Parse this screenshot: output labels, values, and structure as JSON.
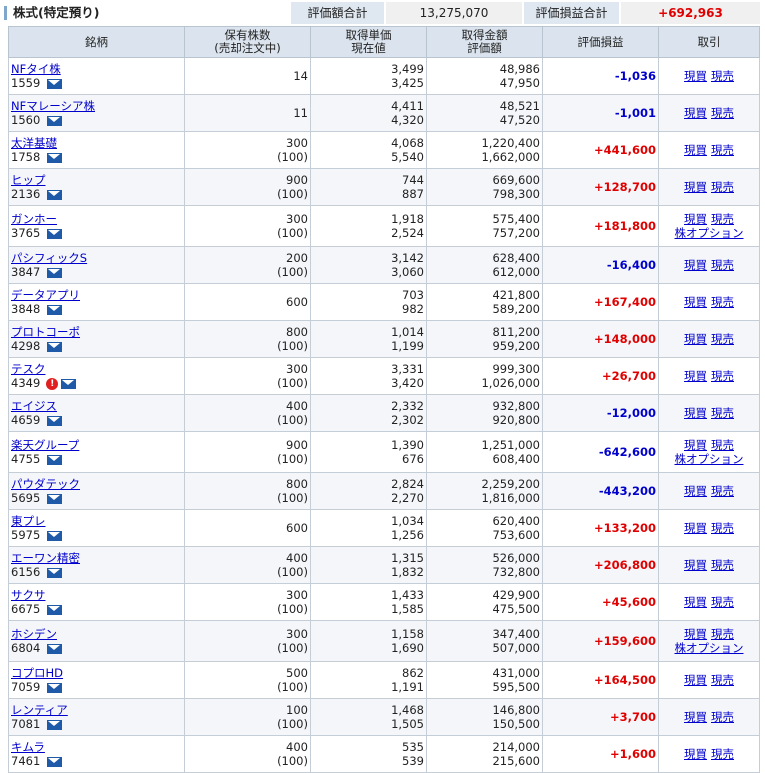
{
  "section_title": "株式(特定預り)",
  "summary": {
    "eval_total_label": "評価額合計",
    "eval_total_value": "13,275,070",
    "pl_total_label": "評価損益合計",
    "pl_total_value": "+692,963"
  },
  "headers": {
    "name": "銘柄",
    "qty_line1": "保有株数",
    "qty_line2": "(売却注文中)",
    "price_line1": "取得単価",
    "price_line2": "現在値",
    "amount_line1": "取得金額",
    "amount_line2": "評価額",
    "pl": "評価損益",
    "trade": "取引"
  },
  "trade_labels": {
    "buy": "現買",
    "sell": "現売",
    "option": "株オプション"
  },
  "colors": {
    "positive": "#e00000",
    "negative": "#0000cc",
    "header_bg": "#dbe4ee",
    "mail_icon": "#1e5aa8"
  },
  "rows": [
    {
      "name": "NFタイ株",
      "code": "1559",
      "qty": "14",
      "qty_sell": "",
      "cost_price": "3,499",
      "cur_price": "3,425",
      "cost_amount": "48,986",
      "eval_amount": "47,950",
      "pl": "-1,036",
      "warn": false,
      "option": false
    },
    {
      "name": "NFマレーシア株",
      "code": "1560",
      "qty": "11",
      "qty_sell": "",
      "cost_price": "4,411",
      "cur_price": "4,320",
      "cost_amount": "48,521",
      "eval_amount": "47,520",
      "pl": "-1,001",
      "warn": false,
      "option": false
    },
    {
      "name": "太洋基礎",
      "code": "1758",
      "qty": "300",
      "qty_sell": "(100)",
      "cost_price": "4,068",
      "cur_price": "5,540",
      "cost_amount": "1,220,400",
      "eval_amount": "1,662,000",
      "pl": "+441,600",
      "warn": false,
      "option": false
    },
    {
      "name": "ヒップ",
      "code": "2136",
      "qty": "900",
      "qty_sell": "(100)",
      "cost_price": "744",
      "cur_price": "887",
      "cost_amount": "669,600",
      "eval_amount": "798,300",
      "pl": "+128,700",
      "warn": false,
      "option": false
    },
    {
      "name": "ガンホー",
      "code": "3765",
      "qty": "300",
      "qty_sell": "(100)",
      "cost_price": "1,918",
      "cur_price": "2,524",
      "cost_amount": "575,400",
      "eval_amount": "757,200",
      "pl": "+181,800",
      "warn": false,
      "option": true
    },
    {
      "name": "パシフィックS",
      "code": "3847",
      "qty": "200",
      "qty_sell": "(100)",
      "cost_price": "3,142",
      "cur_price": "3,060",
      "cost_amount": "628,400",
      "eval_amount": "612,000",
      "pl": "-16,400",
      "warn": false,
      "option": false
    },
    {
      "name": "データアプリ",
      "code": "3848",
      "qty": "600",
      "qty_sell": "",
      "cost_price": "703",
      "cur_price": "982",
      "cost_amount": "421,800",
      "eval_amount": "589,200",
      "pl": "+167,400",
      "warn": false,
      "option": false
    },
    {
      "name": "プロトコーポ",
      "code": "4298",
      "qty": "800",
      "qty_sell": "(100)",
      "cost_price": "1,014",
      "cur_price": "1,199",
      "cost_amount": "811,200",
      "eval_amount": "959,200",
      "pl": "+148,000",
      "warn": false,
      "option": false
    },
    {
      "name": "テスク",
      "code": "4349",
      "qty": "300",
      "qty_sell": "(100)",
      "cost_price": "3,331",
      "cur_price": "3,420",
      "cost_amount": "999,300",
      "eval_amount": "1,026,000",
      "pl": "+26,700",
      "warn": true,
      "option": false
    },
    {
      "name": "エイジス",
      "code": "4659",
      "qty": "400",
      "qty_sell": "(100)",
      "cost_price": "2,332",
      "cur_price": "2,302",
      "cost_amount": "932,800",
      "eval_amount": "920,800",
      "pl": "-12,000",
      "warn": false,
      "option": false
    },
    {
      "name": "楽天グループ",
      "code": "4755",
      "qty": "900",
      "qty_sell": "(100)",
      "cost_price": "1,390",
      "cur_price": "676",
      "cost_amount": "1,251,000",
      "eval_amount": "608,400",
      "pl": "-642,600",
      "warn": false,
      "option": true
    },
    {
      "name": "パウダテック",
      "code": "5695",
      "qty": "800",
      "qty_sell": "(100)",
      "cost_price": "2,824",
      "cur_price": "2,270",
      "cost_amount": "2,259,200",
      "eval_amount": "1,816,000",
      "pl": "-443,200",
      "warn": false,
      "option": false
    },
    {
      "name": "東プレ",
      "code": "5975",
      "qty": "600",
      "qty_sell": "",
      "cost_price": "1,034",
      "cur_price": "1,256",
      "cost_amount": "620,400",
      "eval_amount": "753,600",
      "pl": "+133,200",
      "warn": false,
      "option": false
    },
    {
      "name": "エーワン精密",
      "code": "6156",
      "qty": "400",
      "qty_sell": "(100)",
      "cost_price": "1,315",
      "cur_price": "1,832",
      "cost_amount": "526,000",
      "eval_amount": "732,800",
      "pl": "+206,800",
      "warn": false,
      "option": false
    },
    {
      "name": "サクサ",
      "code": "6675",
      "qty": "300",
      "qty_sell": "(100)",
      "cost_price": "1,433",
      "cur_price": "1,585",
      "cost_amount": "429,900",
      "eval_amount": "475,500",
      "pl": "+45,600",
      "warn": false,
      "option": false
    },
    {
      "name": "ホシデン",
      "code": "6804",
      "qty": "300",
      "qty_sell": "(100)",
      "cost_price": "1,158",
      "cur_price": "1,690",
      "cost_amount": "347,400",
      "eval_amount": "507,000",
      "pl": "+159,600",
      "warn": false,
      "option": true
    },
    {
      "name": "コプロHD",
      "code": "7059",
      "qty": "500",
      "qty_sell": "(100)",
      "cost_price": "862",
      "cur_price": "1,191",
      "cost_amount": "431,000",
      "eval_amount": "595,500",
      "pl": "+164,500",
      "warn": false,
      "option": false
    },
    {
      "name": "レンティア",
      "code": "7081",
      "qty": "100",
      "qty_sell": "(100)",
      "cost_price": "1,468",
      "cur_price": "1,505",
      "cost_amount": "146,800",
      "eval_amount": "150,500",
      "pl": "+3,700",
      "warn": false,
      "option": false
    },
    {
      "name": "キムラ",
      "code": "7461",
      "qty": "400",
      "qty_sell": "(100)",
      "cost_price": "535",
      "cur_price": "539",
      "cost_amount": "214,000",
      "eval_amount": "215,600",
      "pl": "+1,600",
      "warn": false,
      "option": false
    }
  ]
}
